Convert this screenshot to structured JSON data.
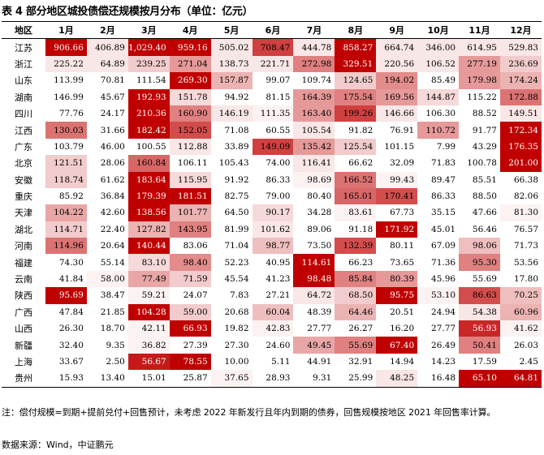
{
  "title": "表 4  部分地区城投债偿还规模按月分布（单位：亿元）",
  "columns": [
    "地区",
    "1月",
    "2月",
    "3月",
    "4月",
    "5月",
    "6月",
    "7月",
    "8月",
    "9月",
    "10月",
    "11月",
    "12月"
  ],
  "rows": [
    {
      "region": "江苏",
      "values": [
        "906.66",
        "406.89",
        "1,029.40",
        "959.16",
        "505.02",
        "708.47",
        "444.78",
        "858.27",
        "664.74",
        "346.00",
        "614.95",
        "529.83"
      ],
      "levels": [
        1.0,
        0.1,
        1.0,
        1.0,
        0.1,
        0.75,
        0.1,
        1.0,
        0.1,
        0.1,
        0.1,
        0.1
      ]
    },
    {
      "region": "浙江",
      "values": [
        "225.22",
        "64.89",
        "239.25",
        "271.04",
        "138.73",
        "221.71",
        "272.98",
        "329.51",
        "220.56",
        "106.52",
        "277.19",
        "236.69"
      ],
      "levels": [
        0.1,
        0.1,
        0.2,
        0.4,
        0.1,
        0.1,
        0.5,
        1.0,
        0.1,
        0.1,
        0.4,
        0.2
      ]
    },
    {
      "region": "山东",
      "values": [
        "113.99",
        "70.81",
        "111.54",
        "269.30",
        "157.87",
        "99.07",
        "109.74",
        "124.65",
        "194.02",
        "85.49",
        "179.98",
        "174.24"
      ],
      "levels": [
        0.0,
        0.0,
        0.0,
        1.0,
        0.3,
        0.0,
        0.0,
        0.2,
        0.45,
        0.0,
        0.4,
        0.3
      ]
    },
    {
      "region": "湖南",
      "values": [
        "146.99",
        "45.67",
        "192.93",
        "151.78",
        "94.92",
        "81.15",
        "164.39",
        "175.54",
        "169.56",
        "144.87",
        "115.22",
        "172.88"
      ],
      "levels": [
        0.0,
        0.0,
        1.0,
        0.15,
        0.0,
        0.0,
        0.4,
        0.5,
        0.4,
        0.15,
        0.0,
        0.55
      ]
    },
    {
      "region": "四川",
      "values": [
        "77.76",
        "24.17",
        "210.36",
        "160.90",
        "146.19",
        "111.35",
        "163.40",
        "199.26",
        "146.66",
        "106.30",
        "88.52",
        "149.51"
      ],
      "levels": [
        0.0,
        0.0,
        1.0,
        0.5,
        0.1,
        0.05,
        0.4,
        0.75,
        0.1,
        0.0,
        0.0,
        0.1
      ]
    },
    {
      "region": "江西",
      "values": [
        "130.03",
        "31.66",
        "182.42",
        "152.05",
        "71.08",
        "60.55",
        "105.54",
        "91.82",
        "76.91",
        "110.72",
        "91.77",
        "172.34"
      ],
      "levels": [
        0.55,
        0.0,
        1.0,
        0.7,
        0.0,
        0.0,
        0.1,
        0.0,
        0.0,
        0.4,
        0.0,
        1.0
      ]
    },
    {
      "region": "广东",
      "values": [
        "103.79",
        "46.00",
        "100.55",
        "112.88",
        "33.89",
        "149.09",
        "135.42",
        "125.54",
        "101.15",
        "7.99",
        "43.29",
        "176.35"
      ],
      "levels": [
        0.0,
        0.0,
        0.0,
        0.1,
        0.0,
        0.75,
        0.4,
        0.2,
        0.0,
        0.0,
        0.0,
        1.0
      ]
    },
    {
      "region": "北京",
      "values": [
        "121.51",
        "28.06",
        "160.84",
        "106.11",
        "105.43",
        "74.00",
        "116.41",
        "66.62",
        "32.09",
        "71.83",
        "100.78",
        "201.00"
      ],
      "levels": [
        0.2,
        0.0,
        0.6,
        0.0,
        0.0,
        0.0,
        0.1,
        0.0,
        0.0,
        0.0,
        0.0,
        1.0
      ]
    },
    {
      "region": "安徽",
      "values": [
        "118.74",
        "61.62",
        "183.64",
        "115.95",
        "91.92",
        "86.33",
        "98.69",
        "166.52",
        "99.43",
        "89.47",
        "85.51",
        "66.38"
      ],
      "levels": [
        0.2,
        0.0,
        1.0,
        0.15,
        0.0,
        0.0,
        0.05,
        0.55,
        0.05,
        0.0,
        0.0,
        0.0
      ]
    },
    {
      "region": "重庆",
      "values": [
        "85.92",
        "36.84",
        "179.39",
        "181.51",
        "82.75",
        "79.00",
        "80.40",
        "165.01",
        "170.41",
        "86.33",
        "88.50",
        "82.06"
      ],
      "levels": [
        0.0,
        0.0,
        1.0,
        1.0,
        0.0,
        0.0,
        0.0,
        0.6,
        0.7,
        0.0,
        0.0,
        0.0
      ]
    },
    {
      "region": "天津",
      "values": [
        "104.22",
        "42.60",
        "138.56",
        "101.77",
        "64.50",
        "90.17",
        "34.28",
        "83.61",
        "67.73",
        "35.15",
        "47.66",
        "81.30"
      ],
      "levels": [
        0.35,
        0.0,
        1.0,
        0.3,
        0.0,
        0.15,
        0.0,
        0.05,
        0.0,
        0.0,
        0.0,
        0.05
      ]
    },
    {
      "region": "湖北",
      "values": [
        "114.71",
        "22.40",
        "127.82",
        "143.95",
        "81.99",
        "101.62",
        "89.06",
        "91.18",
        "171.92",
        "45.01",
        "56.46",
        "76.57"
      ],
      "levels": [
        0.2,
        0.0,
        0.3,
        0.5,
        0.0,
        0.1,
        0.0,
        0.0,
        1.0,
        0.0,
        0.0,
        0.0
      ]
    },
    {
      "region": "河南",
      "values": [
        "114.96",
        "20.64",
        "140.44",
        "83.06",
        "71.04",
        "98.77",
        "73.50",
        "132.39",
        "80.11",
        "67.09",
        "98.06",
        "71.73"
      ],
      "levels": [
        0.55,
        0.0,
        1.0,
        0.0,
        0.0,
        0.25,
        0.0,
        0.7,
        0.0,
        0.0,
        0.25,
        0.0
      ]
    },
    {
      "region": "福建",
      "values": [
        "74.30",
        "55.14",
        "83.10",
        "98.40",
        "52.23",
        "40.95",
        "114.61",
        "66.23",
        "73.65",
        "71.36",
        "95.30",
        "53.56"
      ],
      "levels": [
        0.0,
        0.0,
        0.15,
        0.45,
        0.0,
        0.0,
        1.0,
        0.0,
        0.0,
        0.0,
        0.5,
        0.0
      ]
    },
    {
      "region": "云南",
      "values": [
        "41.84",
        "58.00",
        "77.49",
        "71.59",
        "45.54",
        "41.23",
        "98.48",
        "85.84",
        "80.39",
        "45.96",
        "55.69",
        "17.80"
      ],
      "levels": [
        0.0,
        0.05,
        0.35,
        0.2,
        0.0,
        0.0,
        1.0,
        0.5,
        0.4,
        0.0,
        0.0,
        0.0
      ]
    },
    {
      "region": "陕西",
      "values": [
        "95.69",
        "38.47",
        "59.21",
        "24.07",
        "7.83",
        "27.21",
        "64.72",
        "68.50",
        "95.75",
        "53.10",
        "86.63",
        "70.25"
      ],
      "levels": [
        1.0,
        0.0,
        0.05,
        0.0,
        0.0,
        0.0,
        0.1,
        0.2,
        1.0,
        0.05,
        0.7,
        0.25
      ]
    },
    {
      "region": "广西",
      "values": [
        "47.84",
        "21.85",
        "104.28",
        "59.00",
        "20.68",
        "60.04",
        "48.39",
        "64.46",
        "20.51",
        "24.94",
        "54.38",
        "60.96"
      ],
      "levels": [
        0.0,
        0.0,
        1.0,
        0.2,
        0.0,
        0.25,
        0.0,
        0.3,
        0.0,
        0.0,
        0.1,
        0.3
      ]
    },
    {
      "region": "山西",
      "values": [
        "26.30",
        "18.70",
        "42.11",
        "66.93",
        "19.82",
        "42.83",
        "27.77",
        "26.27",
        "16.20",
        "27.77",
        "56.93",
        "41.62"
      ],
      "levels": [
        0.0,
        0.0,
        0.05,
        1.0,
        0.0,
        0.05,
        0.0,
        0.0,
        0.0,
        0.0,
        0.85,
        0.05
      ]
    },
    {
      "region": "新疆",
      "values": [
        "32.40",
        "9.35",
        "36.82",
        "27.39",
        "27.30",
        "24.60",
        "49.45",
        "55.69",
        "67.40",
        "26.49",
        "50.41",
        "26.03"
      ],
      "levels": [
        0.0,
        0.0,
        0.05,
        0.0,
        0.0,
        0.0,
        0.35,
        0.5,
        1.0,
        0.0,
        0.5,
        0.0
      ]
    },
    {
      "region": "上海",
      "values": [
        "33.67",
        "2.50",
        "56.67",
        "78.55",
        "10.00",
        "5.11",
        "44.91",
        "32.91",
        "14.94",
        "14.23",
        "17.59",
        "2.45"
      ],
      "levels": [
        0.0,
        0.0,
        0.9,
        1.0,
        0.0,
        0.0,
        0.0,
        0.0,
        0.0,
        0.0,
        0.0,
        0.0
      ]
    },
    {
      "region": "贵州",
      "values": [
        "15.93",
        "13.40",
        "15.01",
        "25.87",
        "37.65",
        "28.93",
        "9.31",
        "25.99",
        "48.25",
        "16.48",
        "65.10",
        "64.81"
      ],
      "levels": [
        0.0,
        0.0,
        0.0,
        0.0,
        0.05,
        0.0,
        0.0,
        0.0,
        0.1,
        0.0,
        1.0,
        1.0
      ]
    }
  ],
  "note": "注：偿付规模=到期+提前兑付+回售预计，未考虑 2022 年新发行且年内到期的债券，回售规模按地区 2021 年回售率计算。",
  "source": "数据来源：Wind，中证鹏元",
  "colors": {
    "high": "#c00000",
    "low": "#ffffff",
    "text_dark": "#000000",
    "text_light": "#ffffff"
  }
}
